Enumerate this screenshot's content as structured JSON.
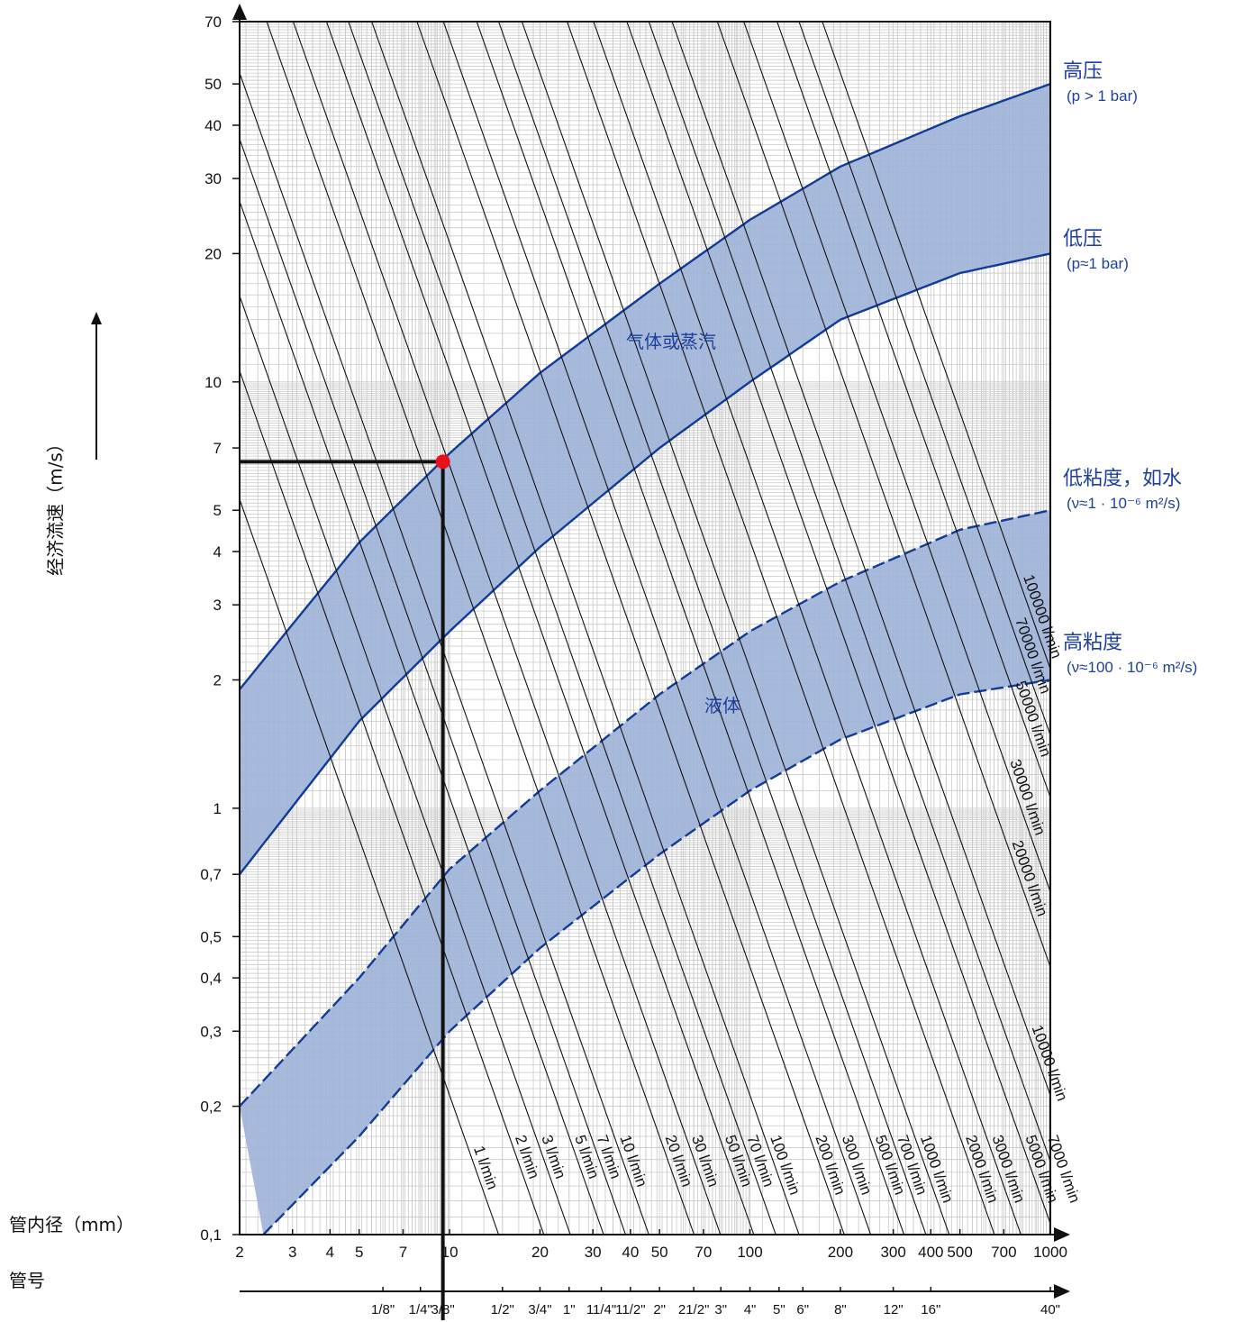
{
  "chart_data": {
    "type": "line",
    "x_scale": "log",
    "y_scale": "log",
    "xlim": [
      2,
      1000
    ],
    "ylim": [
      0.1,
      70
    ],
    "grid": true,
    "xlabel": "管内径（mm）",
    "ylabel": "经济流速（m/s）",
    "pipe_label": "管号",
    "x_ticks": [
      2,
      3,
      4,
      5,
      7,
      10,
      20,
      30,
      40,
      50,
      70,
      100,
      200,
      300,
      400,
      500,
      700,
      1000
    ],
    "x_tick_labels": [
      "2",
      "3",
      "4",
      "5",
      "7",
      "10",
      "20",
      "30",
      "40",
      "50",
      "70",
      "100",
      "200",
      "300",
      "400",
      "500",
      "700",
      "1000"
    ],
    "y_ticks": [
      0.1,
      0.2,
      0.3,
      0.4,
      0.5,
      0.7,
      1,
      2,
      3,
      4,
      5,
      7,
      10,
      20,
      30,
      40,
      50,
      70
    ],
    "y_tick_labels": [
      "0,1",
      "0,2",
      "0,3",
      "0,4",
      "0,5",
      "0,7",
      "1",
      "2",
      "3",
      "4",
      "5",
      "7",
      "10",
      "20",
      "30",
      "40",
      "50",
      "70"
    ],
    "pipe_sizes": [
      {
        "label": "1/8\"",
        "x": 6
      },
      {
        "label": "1/4\"",
        "x": 8
      },
      {
        "label": "3/8\"",
        "x": 9.5
      },
      {
        "label": "1/2\"",
        "x": 15
      },
      {
        "label": "3/4\"",
        "x": 20
      },
      {
        "label": "1\"",
        "x": 25
      },
      {
        "label": "11/4\"",
        "x": 32
      },
      {
        "label": "11/2\"",
        "x": 40
      },
      {
        "label": "2\"",
        "x": 50
      },
      {
        "label": "21/2\"",
        "x": 65
      },
      {
        "label": "3\"",
        "x": 80
      },
      {
        "label": "4\"",
        "x": 100
      },
      {
        "label": "5\"",
        "x": 125
      },
      {
        "label": "6\"",
        "x": 150
      },
      {
        "label": "8\"",
        "x": 200
      },
      {
        "label": "12\"",
        "x": 300
      },
      {
        "label": "16\"",
        "x": 400
      },
      {
        "label": "40\"",
        "x": 1000
      }
    ],
    "flow_lines": {
      "unit": "l/min",
      "values": [
        1,
        2,
        3,
        5,
        7,
        10,
        20,
        30,
        50,
        70,
        100,
        200,
        300,
        500,
        700,
        1000,
        2000,
        3000,
        5000,
        7000,
        10000,
        20000,
        30000,
        50000,
        70000,
        100000
      ],
      "labels": [
        "1 l/min",
        "2 l/min",
        "3 l/min",
        "5 l/min",
        "7 l/min",
        "10 l/min",
        "20 l/min",
        "30 l/min",
        "50 l/min",
        "70 l/min",
        "100 l/min",
        "200 l/min",
        "300 l/min",
        "500 l/min",
        "700 l/min",
        "1000 l/min",
        "2000 l/min",
        "3000 l/min",
        "5000 l/min",
        "7000 l/min",
        "10000 l/min",
        "20000 l/min",
        "30000 l/min",
        "50000 l/min",
        "70000 l/min",
        "100000 l/min"
      ]
    },
    "bands": [
      {
        "name": "气体或蒸汽",
        "upper": {
          "label": "高压",
          "note": "(p > 1 bar)",
          "points": [
            [
              2,
              1.9
            ],
            [
              5,
              4.2
            ],
            [
              10,
              6.8
            ],
            [
              20,
              10.5
            ],
            [
              50,
              17
            ],
            [
              100,
              24
            ],
            [
              200,
              32
            ],
            [
              500,
              42
            ],
            [
              1000,
              50
            ]
          ]
        },
        "lower": {
          "label": "低压",
          "note": "(p≈1 bar)",
          "points": [
            [
              2,
              0.7
            ],
            [
              5,
              1.6
            ],
            [
              10,
              2.6
            ],
            [
              20,
              4.1
            ],
            [
              50,
              7.0
            ],
            [
              100,
              10
            ],
            [
              200,
              14
            ],
            [
              500,
              18
            ],
            [
              1000,
              20
            ]
          ]
        }
      },
      {
        "name": "液体",
        "upper": {
          "label": "低粘度，如水",
          "note": "(ν≈1 · 10⁻⁶ m²/s)",
          "points": [
            [
              2,
              0.2
            ],
            [
              5,
              0.4
            ],
            [
              10,
              0.72
            ],
            [
              20,
              1.1
            ],
            [
              50,
              1.85
            ],
            [
              100,
              2.6
            ],
            [
              200,
              3.4
            ],
            [
              500,
              4.5
            ],
            [
              1000,
              5
            ]
          ]
        },
        "lower": {
          "label": "高粘度",
          "note": "(ν≈100 · 10⁻⁶ m²/s)",
          "points": [
            [
              2.4,
              0.1
            ],
            [
              5,
              0.17
            ],
            [
              10,
              0.3
            ],
            [
              20,
              0.47
            ],
            [
              50,
              0.78
            ],
            [
              100,
              1.1
            ],
            [
              200,
              1.45
            ],
            [
              500,
              1.85
            ],
            [
              1000,
              2
            ]
          ]
        }
      }
    ],
    "example_point": {
      "x": 9.5,
      "y": 6.5,
      "color": "#e8101a"
    },
    "band_fill": "#9fb3d8",
    "band_line": "#123b96",
    "label_color": "#1d3f9a"
  }
}
